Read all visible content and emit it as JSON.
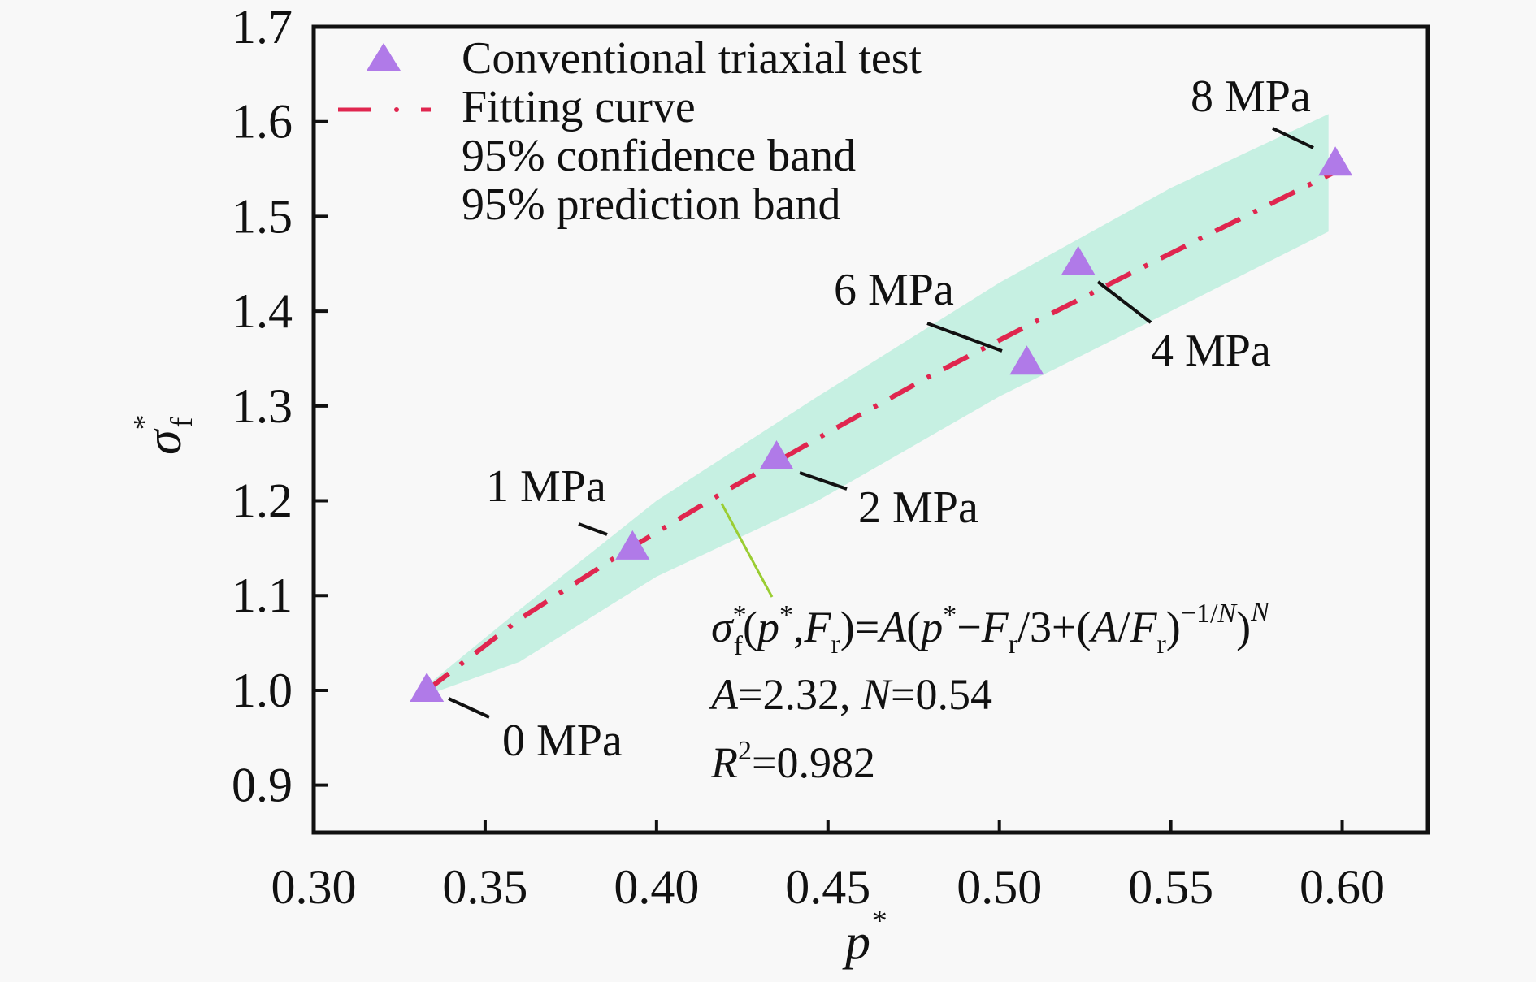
{
  "chart_data": {
    "type": "scatter",
    "title": "",
    "xlabel": "p",
    "xlabel_superscript": "*",
    "ylabel": "σ",
    "ylabel_subscript": "f",
    "ylabel_superscript": "*",
    "xlim": [
      0.3,
      0.625
    ],
    "ylim": [
      0.85,
      1.7
    ],
    "x_ticks": [
      0.3,
      0.35,
      0.4,
      0.45,
      0.5,
      0.55,
      0.6
    ],
    "x_tick_labels": [
      "0.30",
      "0.35",
      "0.40",
      "0.45",
      "0.50",
      "0.55",
      "0.60"
    ],
    "y_ticks": [
      0.9,
      1.0,
      1.1,
      1.2,
      1.3,
      1.4,
      1.5,
      1.6,
      1.7
    ],
    "y_tick_labels": [
      "0.9",
      "1.0",
      "1.1",
      "1.2",
      "1.3",
      "1.4",
      "1.5",
      "1.6",
      "1.7"
    ],
    "grid": false,
    "legend_position": "top-left",
    "legend": [
      {
        "label": "Conventional triaxial test",
        "marker": "triangle"
      },
      {
        "label": "Fitting curve",
        "marker": "dash-dot-line"
      },
      {
        "label": "95% confidence band",
        "marker": "none"
      },
      {
        "label": "95% prediction band",
        "marker": "none"
      }
    ],
    "series": [
      {
        "name": "Conventional triaxial test",
        "kind": "scatter",
        "color": "#b07ae8",
        "points": [
          {
            "x": 0.333,
            "y": 1.0,
            "label": "0 MPa"
          },
          {
            "x": 0.393,
            "y": 1.15,
            "label": "1 MPa"
          },
          {
            "x": 0.435,
            "y": 1.245,
            "label": "2 MPa"
          },
          {
            "x": 0.523,
            "y": 1.45,
            "label": "4 MPa"
          },
          {
            "x": 0.508,
            "y": 1.345,
            "label": "6 MPa"
          },
          {
            "x": 0.598,
            "y": 1.555,
            "label": "8 MPa"
          }
        ]
      },
      {
        "name": "Fitting curve",
        "kind": "line",
        "color": "#e0264f",
        "x": [
          0.333,
          0.36,
          0.39,
          0.42,
          0.45,
          0.48,
          0.51,
          0.54,
          0.57,
          0.598
        ],
        "y": [
          1.0,
          1.075,
          1.145,
          1.21,
          1.272,
          1.332,
          1.388,
          1.443,
          1.497,
          1.547
        ]
      },
      {
        "name": "95% confidence band",
        "kind": "band",
        "color": "#c6f0e2",
        "x": [
          0.333,
          0.36,
          0.4,
          0.447,
          0.5,
          0.55,
          0.596
        ],
        "upper": [
          1.005,
          1.085,
          1.2,
          1.31,
          1.43,
          1.53,
          1.608
        ],
        "lower": [
          0.995,
          1.03,
          1.12,
          1.2,
          1.31,
          1.4,
          1.484
        ]
      }
    ],
    "annotations": {
      "formula_line1": {
        "sigma": "σ",
        "sub_f": "f",
        "star": "*",
        "open": "(",
        "p": "p",
        "comma": ",",
        "F": "F",
        "sub_r": "r",
        "close_eq": ")=",
        "A": "A",
        "open2": "(",
        "minus": "−",
        "div3plus": "/3+(",
        "slash": "/",
        "close": ")",
        "exp": "−1/",
        "N": "N",
        "close_paren": ")"
      },
      "params": {
        "A_label": "A",
        "A_value": "=2.32, ",
        "N_label": "N",
        "N_value": "=0.54"
      },
      "r2": {
        "R_label": "R",
        "sup": "2",
        "value": "=0.982"
      }
    }
  }
}
